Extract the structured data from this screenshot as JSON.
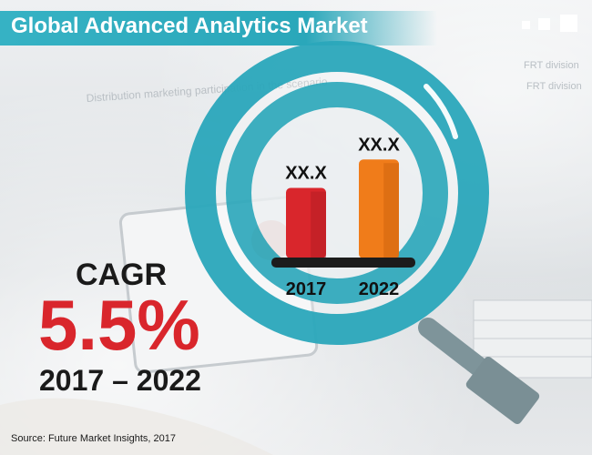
{
  "title": "Global Advanced Analytics Market",
  "cagr": {
    "label": "CAGR",
    "value": "5.5%",
    "period": "2017 – 2022"
  },
  "source": "Source: Future Market Insights, 2017",
  "colors": {
    "accent": "#2aa7ba",
    "bar_2017": "#d9262c",
    "bar_2022": "#f07c1a",
    "cagr": "#d9262c"
  },
  "chart_data": {
    "type": "bar",
    "categories": [
      "2017",
      "2022"
    ],
    "series": [
      {
        "values": [
          0.62,
          0.87
        ],
        "data_labels": [
          "XX.X",
          "XX.X"
        ]
      }
    ]
  },
  "background_text": [
    "Distribution marketing participation in the scenario",
    "FRT division",
    "FRT division"
  ]
}
